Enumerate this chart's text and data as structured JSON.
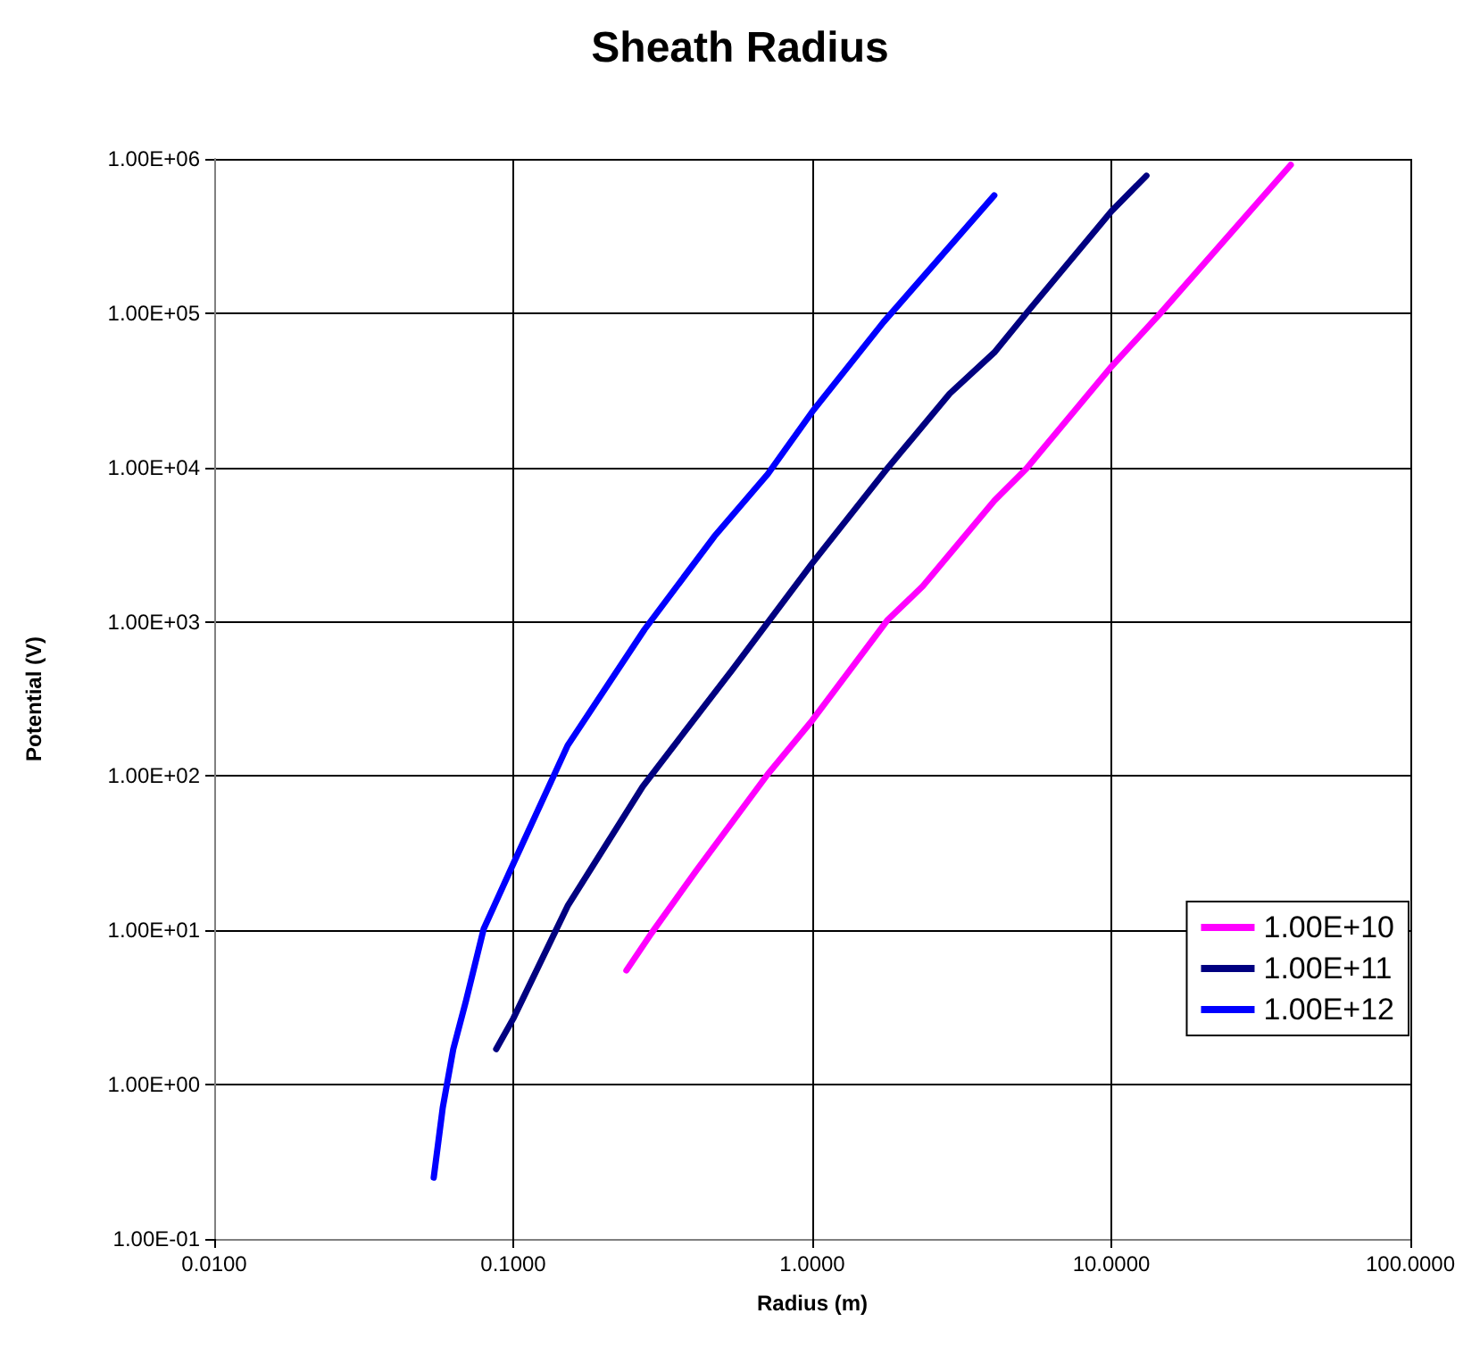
{
  "chart_data": {
    "type": "line",
    "title": "Sheath Radius",
    "xlabel": "Radius (m)",
    "ylabel": "Potential (V)",
    "log": "xy",
    "grid": true,
    "legend": "right",
    "marker": "none",
    "line_style": "solid",
    "xlim": [
      0.01,
      100
    ],
    "xticks": [
      {
        "value": 0.01,
        "label": "0.0100"
      },
      {
        "value": 0.1,
        "label": "0.1000"
      },
      {
        "value": 1,
        "label": "1.0000"
      },
      {
        "value": 10,
        "label": "10.0000"
      },
      {
        "value": 100,
        "label": "100.0000"
      }
    ],
    "ylim": [
      0.1,
      1000000
    ],
    "yticks": [
      {
        "value": 0.1,
        "label": "1.00E-01"
      },
      {
        "value": 1,
        "label": "1.00E+00"
      },
      {
        "value": 10,
        "label": "1.00E+01"
      },
      {
        "value": 100,
        "label": "1.00E+02"
      },
      {
        "value": 1000,
        "label": "1.00E+03"
      },
      {
        "value": 10000,
        "label": "1.00E+04"
      },
      {
        "value": 100000,
        "label": "1.00E+05"
      },
      {
        "value": 1000000,
        "label": "1.00E+06"
      }
    ],
    "series": [
      {
        "name": "1.00E+10",
        "color": "#ff00ff",
        "x": [
          0.239,
          0.29,
          0.41,
          0.71,
          1.0,
          1.78,
          2.34,
          4.06,
          5.2,
          10,
          14.6,
          39.8
        ],
        "values": [
          5.5,
          9.6,
          24.5,
          103,
          230,
          1020,
          1700,
          6090,
          9840,
          45000,
          100000,
          914000
        ]
      },
      {
        "name": "1.00E+11",
        "color": "#000080",
        "x": [
          0.0877,
          0.1,
          0.152,
          0.271,
          0.538,
          1.0,
          1.78,
          2.88,
          4.06,
          5.2,
          10,
          13.1
        ],
        "values": [
          1.7,
          2.68,
          14.4,
          85.7,
          484,
          2400,
          9840,
          30100,
          55600,
          100000,
          457000,
          778000
        ]
      },
      {
        "name": "1.00E+12",
        "color": "#0000ff",
        "x": [
          0.0542,
          0.0581,
          0.063,
          0.0695,
          0.0796,
          0.1,
          0.152,
          0.275,
          0.47,
          0.71,
          1.0,
          1.73,
          4.06
        ],
        "values": [
          0.25,
          0.71,
          1.7,
          3.5,
          10.2,
          27,
          158,
          894,
          3570,
          9080,
          23000,
          87500,
          580000
        ]
      }
    ]
  }
}
